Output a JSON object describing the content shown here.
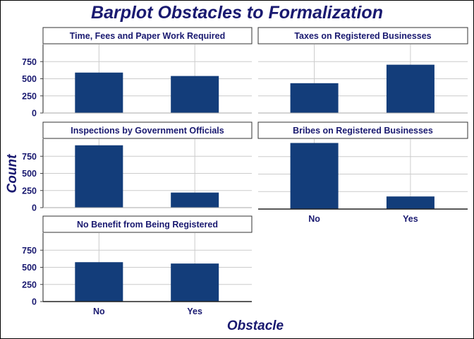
{
  "chart_data": {
    "type": "bar",
    "title": "Barplot Obstacles to Formalization",
    "xlabel": "Obstacle",
    "ylabel": "Count",
    "categories": [
      "No",
      "Yes"
    ],
    "yticks": [
      0,
      250,
      500,
      750
    ],
    "ylim": [
      0,
      1000
    ],
    "grid": true,
    "bar_color": "#133d7a",
    "panels": [
      {
        "title": "Time, Fees and Paper Work Required",
        "values": [
          590,
          540
        ]
      },
      {
        "title": "Taxes on Registered Businesses",
        "values": [
          435,
          705
        ]
      },
      {
        "title": "Inspections by Government Officials",
        "values": [
          910,
          220
        ]
      },
      {
        "title": "Bribes on Registered Businesses",
        "values": [
          945,
          180
        ]
      },
      {
        "title": "No Benefit from Being Registered",
        "values": [
          575,
          555
        ]
      }
    ]
  }
}
